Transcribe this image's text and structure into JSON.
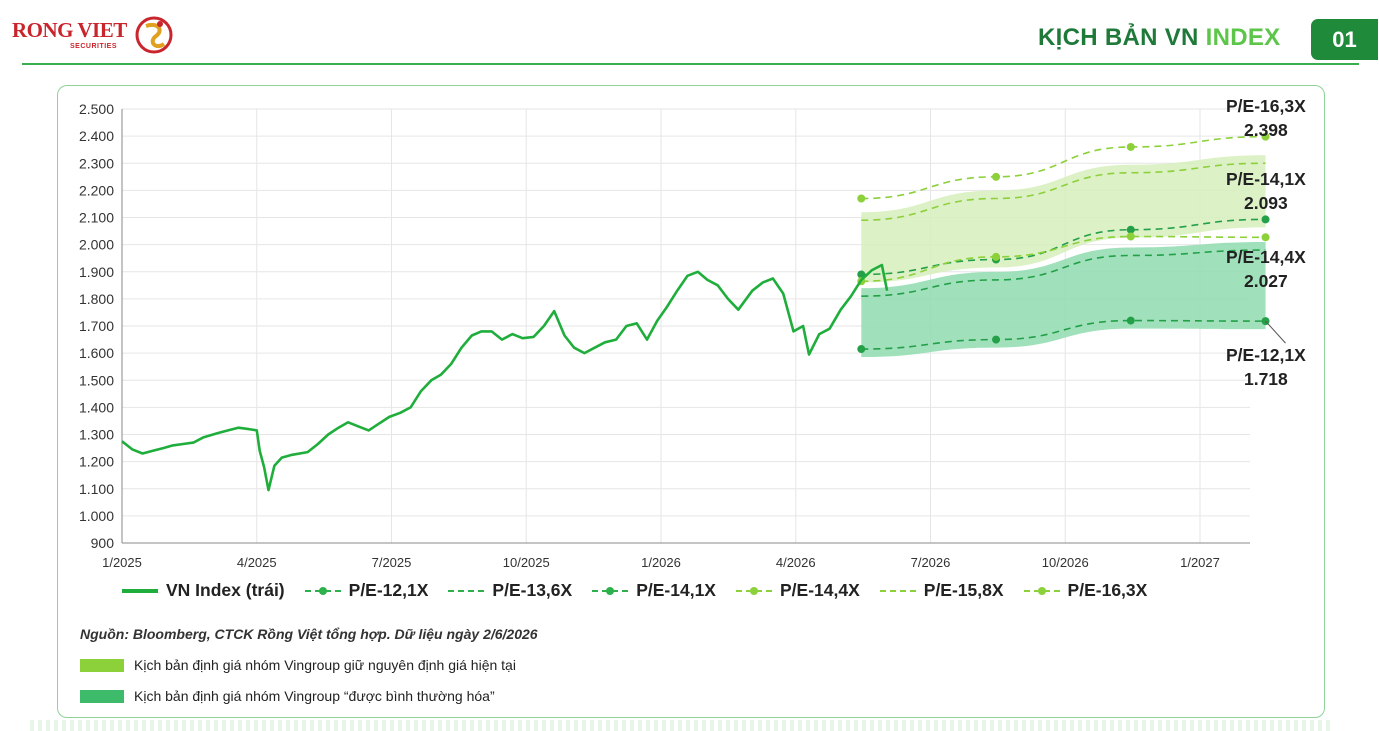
{
  "header": {
    "logo_text": "RONG VIET",
    "logo_sub": "SECURITIES",
    "title_part1": "KỊCH BẢN VN ",
    "title_part2": "INDEX",
    "page_number": "01"
  },
  "colors": {
    "brand_red": "#c9252c",
    "brand_green_dark": "#1f8a3a",
    "vnindex_line": "#1fae3c",
    "band_light": "#cfeab0",
    "band_dark": "#8bdcae",
    "dot_dark": "#2eb04c",
    "dot_light": "#8cd03a"
  },
  "chart_data": {
    "type": "line",
    "ylim": [
      900,
      2500
    ],
    "y_ticks": [
      "900",
      "1.000",
      "1.100",
      "1.200",
      "1.300",
      "1.400",
      "1.500",
      "1.600",
      "1.700",
      "1.800",
      "1.900",
      "2.000",
      "2.100",
      "2.200",
      "2.300",
      "2.400",
      "2.500"
    ],
    "x_ticks": [
      "1/2025",
      "4/2025",
      "7/2025",
      "10/2025",
      "1/2026",
      "4/2026",
      "7/2026",
      "10/2026",
      "1/2027"
    ],
    "series": [
      {
        "name": "VN Index (trái)",
        "points": [
          [
            "2025-01-01",
            1275
          ],
          [
            "2025-01-08",
            1245
          ],
          [
            "2025-01-15",
            1230
          ],
          [
            "2025-01-22",
            1240
          ],
          [
            "2025-01-29",
            1250
          ],
          [
            "2025-02-05",
            1260
          ],
          [
            "2025-02-12",
            1265
          ],
          [
            "2025-02-19",
            1270
          ],
          [
            "2025-02-26",
            1290
          ],
          [
            "2025-03-05",
            1305
          ],
          [
            "2025-03-12",
            1315
          ],
          [
            "2025-03-19",
            1325
          ],
          [
            "2025-03-26",
            1320
          ],
          [
            "2025-04-01",
            1315
          ],
          [
            "2025-04-03",
            1240
          ],
          [
            "2025-04-06",
            1180
          ],
          [
            "2025-04-09",
            1095
          ],
          [
            "2025-04-13",
            1185
          ],
          [
            "2025-04-18",
            1215
          ],
          [
            "2025-04-25",
            1225
          ],
          [
            "2025-05-05",
            1235
          ],
          [
            "2025-05-12",
            1265
          ],
          [
            "2025-05-19",
            1300
          ],
          [
            "2025-05-26",
            1325
          ],
          [
            "2025-06-02",
            1345
          ],
          [
            "2025-06-09",
            1330
          ],
          [
            "2025-06-16",
            1315
          ],
          [
            "2025-06-23",
            1340
          ],
          [
            "2025-06-30",
            1365
          ],
          [
            "2025-07-07",
            1380
          ],
          [
            "2025-07-14",
            1400
          ],
          [
            "2025-07-21",
            1460
          ],
          [
            "2025-07-28",
            1500
          ],
          [
            "2025-08-04",
            1520
          ],
          [
            "2025-08-11",
            1560
          ],
          [
            "2025-08-18",
            1620
          ],
          [
            "2025-08-25",
            1665
          ],
          [
            "2025-09-01",
            1680
          ],
          [
            "2025-09-08",
            1680
          ],
          [
            "2025-09-15",
            1650
          ],
          [
            "2025-09-22",
            1670
          ],
          [
            "2025-09-29",
            1655
          ],
          [
            "2025-10-06",
            1660
          ],
          [
            "2025-10-13",
            1700
          ],
          [
            "2025-10-20",
            1755
          ],
          [
            "2025-10-27",
            1665
          ],
          [
            "2025-11-03",
            1620
          ],
          [
            "2025-11-10",
            1600
          ],
          [
            "2025-11-17",
            1620
          ],
          [
            "2025-11-24",
            1640
          ],
          [
            "2025-12-01",
            1650
          ],
          [
            "2025-12-08",
            1700
          ],
          [
            "2025-12-15",
            1710
          ],
          [
            "2025-12-22",
            1650
          ],
          [
            "2025-12-29",
            1720
          ],
          [
            "2026-01-05",
            1770
          ],
          [
            "2026-01-12",
            1830
          ],
          [
            "2026-01-19",
            1885
          ],
          [
            "2026-01-26",
            1900
          ],
          [
            "2026-02-02",
            1870
          ],
          [
            "2026-02-09",
            1850
          ],
          [
            "2026-02-16",
            1800
          ],
          [
            "2026-02-23",
            1760
          ],
          [
            "2026-03-02",
            1830
          ],
          [
            "2026-03-09",
            1860
          ],
          [
            "2026-03-16",
            1875
          ],
          [
            "2026-03-23",
            1820
          ],
          [
            "2026-03-30",
            1680
          ],
          [
            "2026-04-06",
            1700
          ],
          [
            "2026-04-10",
            1595
          ],
          [
            "2026-04-17",
            1670
          ],
          [
            "2026-04-24",
            1690
          ],
          [
            "2026-05-01",
            1760
          ],
          [
            "2026-05-08",
            1810
          ],
          [
            "2026-05-15",
            1870
          ],
          [
            "2026-05-22",
            1905
          ],
          [
            "2026-05-29",
            1925
          ],
          [
            "2026-06-02",
            1830
          ]
        ]
      },
      {
        "name": "P/E-12,1X",
        "points": [
          [
            "2026-05-15",
            1615
          ],
          [
            "2026-08-15",
            1650
          ],
          [
            "2026-11-15",
            1720
          ],
          [
            "2027-02-15",
            1718
          ]
        ]
      },
      {
        "name": "P/E-13,6X",
        "points": [
          [
            "2026-05-15",
            1810
          ],
          [
            "2026-08-15",
            1870
          ],
          [
            "2026-11-15",
            1960
          ],
          [
            "2027-02-15",
            1980
          ]
        ]
      },
      {
        "name": "P/E-14,1X",
        "points": [
          [
            "2026-05-15",
            1890
          ],
          [
            "2026-08-15",
            1945
          ],
          [
            "2026-11-15",
            2055
          ],
          [
            "2027-02-15",
            2093
          ]
        ]
      },
      {
        "name": "P/E-14,4X",
        "points": [
          [
            "2026-05-15",
            1865
          ],
          [
            "2026-08-15",
            1955
          ],
          [
            "2026-11-15",
            2030
          ],
          [
            "2027-02-15",
            2027
          ]
        ]
      },
      {
        "name": "P/E-15,8X",
        "points": [
          [
            "2026-05-15",
            2090
          ],
          [
            "2026-08-15",
            2170
          ],
          [
            "2026-11-15",
            2265
          ],
          [
            "2027-02-15",
            2300
          ]
        ]
      },
      {
        "name": "P/E-16,3X",
        "points": [
          [
            "2026-05-15",
            2170
          ],
          [
            "2026-08-15",
            2250
          ],
          [
            "2026-11-15",
            2360
          ],
          [
            "2027-02-15",
            2398
          ]
        ]
      }
    ],
    "annotations": [
      {
        "label": "P/E-16,3X",
        "value": "2.398"
      },
      {
        "label": "P/E-14,1X",
        "value": "2.093"
      },
      {
        "label": "P/E-14,4X",
        "value": "2.027"
      },
      {
        "label": "P/E-12,1X",
        "value": "1.718"
      }
    ],
    "legend_position": "bottom",
    "grid": true
  },
  "legend": [
    {
      "label": "VN Index (trái)",
      "style": "solid"
    },
    {
      "label": "P/E-12,1X",
      "style": "dash-dot-dark"
    },
    {
      "label": "P/E-13,6X",
      "style": "dash-dark"
    },
    {
      "label": "P/E-14,1X",
      "style": "dash-dot-dark"
    },
    {
      "label": "P/E-14,4X",
      "style": "dash-dot-light"
    },
    {
      "label": "P/E-15,8X",
      "style": "dash-light"
    },
    {
      "label": "P/E-16,3X",
      "style": "dash-dot-light"
    }
  ],
  "footer": {
    "source": "Nguồn: Bloomberg, CTCK Rồng Việt tổng hợp. Dữ liệu ngày 2/6/2026",
    "scenario_1": "Kịch bản định giá nhóm Vingroup giữ nguyên định giá hiện tại",
    "scenario_2": "Kịch bản định giá nhóm Vingroup “được bình thường hóa”"
  }
}
